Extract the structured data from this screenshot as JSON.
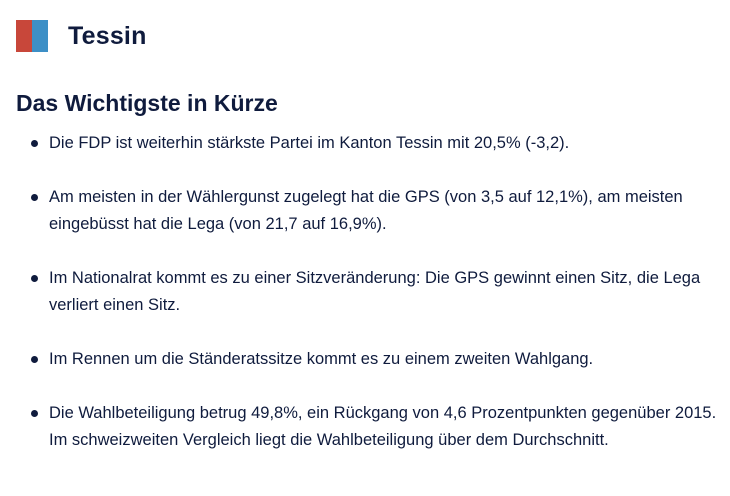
{
  "header": {
    "canton_name": "Tessin",
    "flag": {
      "icon": "ticino-flag-icon",
      "left_color": "#c8473a",
      "right_color": "#3d8fc6"
    }
  },
  "summary": {
    "title": "Das Wichtigste in Kürze",
    "items": [
      "Die FDP ist weiterhin stärkste Partei im Kanton Tessin mit 20,5% (-3,2).",
      "Am meisten in der Wählergunst zugelegt hat die GPS (von 3,5 auf 12,1%), am meisten eingebüsst hat die Lega (von 21,7 auf 16,9%).",
      "Im Nationalrat kommt es zu einer Sitzveränderung: Die GPS gewinnt einen Sitz, die Lega verliert einen Sitz.",
      "Im Rennen um die Ständeratssitze kommt es zu einem zweiten Wahlgang.",
      "Die Wahlbeteiligung betrug 49,8%, ein Rückgang von 4,6 Prozentpunkten gegenüber 2015. Im schweizweiten Vergleich liegt die Wahlbeteiligung über dem Durchschnitt."
    ]
  },
  "colors": {
    "text": "#0f1b3d"
  }
}
